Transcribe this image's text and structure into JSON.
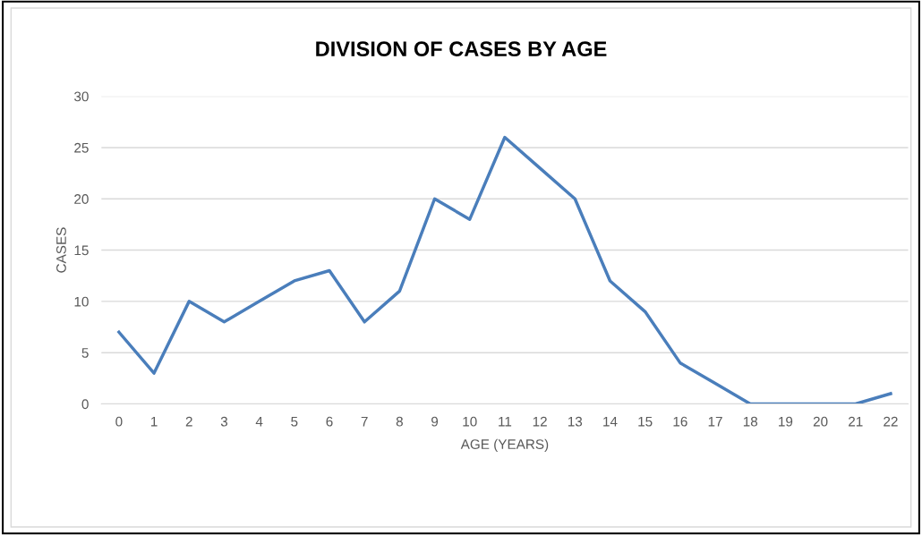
{
  "chart_data": {
    "type": "line",
    "title": "DIVISION OF CASES BY AGE",
    "xlabel": "AGE (YEARS)",
    "ylabel": "CASES",
    "categories": [
      "0",
      "1",
      "2",
      "3",
      "4",
      "5",
      "6",
      "7",
      "8",
      "9",
      "10",
      "11",
      "12",
      "13",
      "14",
      "15",
      "16",
      "17",
      "18",
      "19",
      "20",
      "21",
      "22"
    ],
    "series": [
      {
        "color": "#4a7ebb",
        "values": [
          7,
          3,
          10,
          8,
          10,
          12,
          13,
          8,
          11,
          20,
          18,
          26,
          23,
          20,
          12,
          9,
          4,
          2,
          0,
          0,
          0,
          0,
          1
        ]
      }
    ],
    "ylim": [
      0,
      30
    ],
    "yticks": [
      0,
      5,
      10,
      15,
      20,
      25,
      30
    ],
    "grid": "y",
    "legend": false,
    "marker": "none",
    "line_style": "solid"
  }
}
